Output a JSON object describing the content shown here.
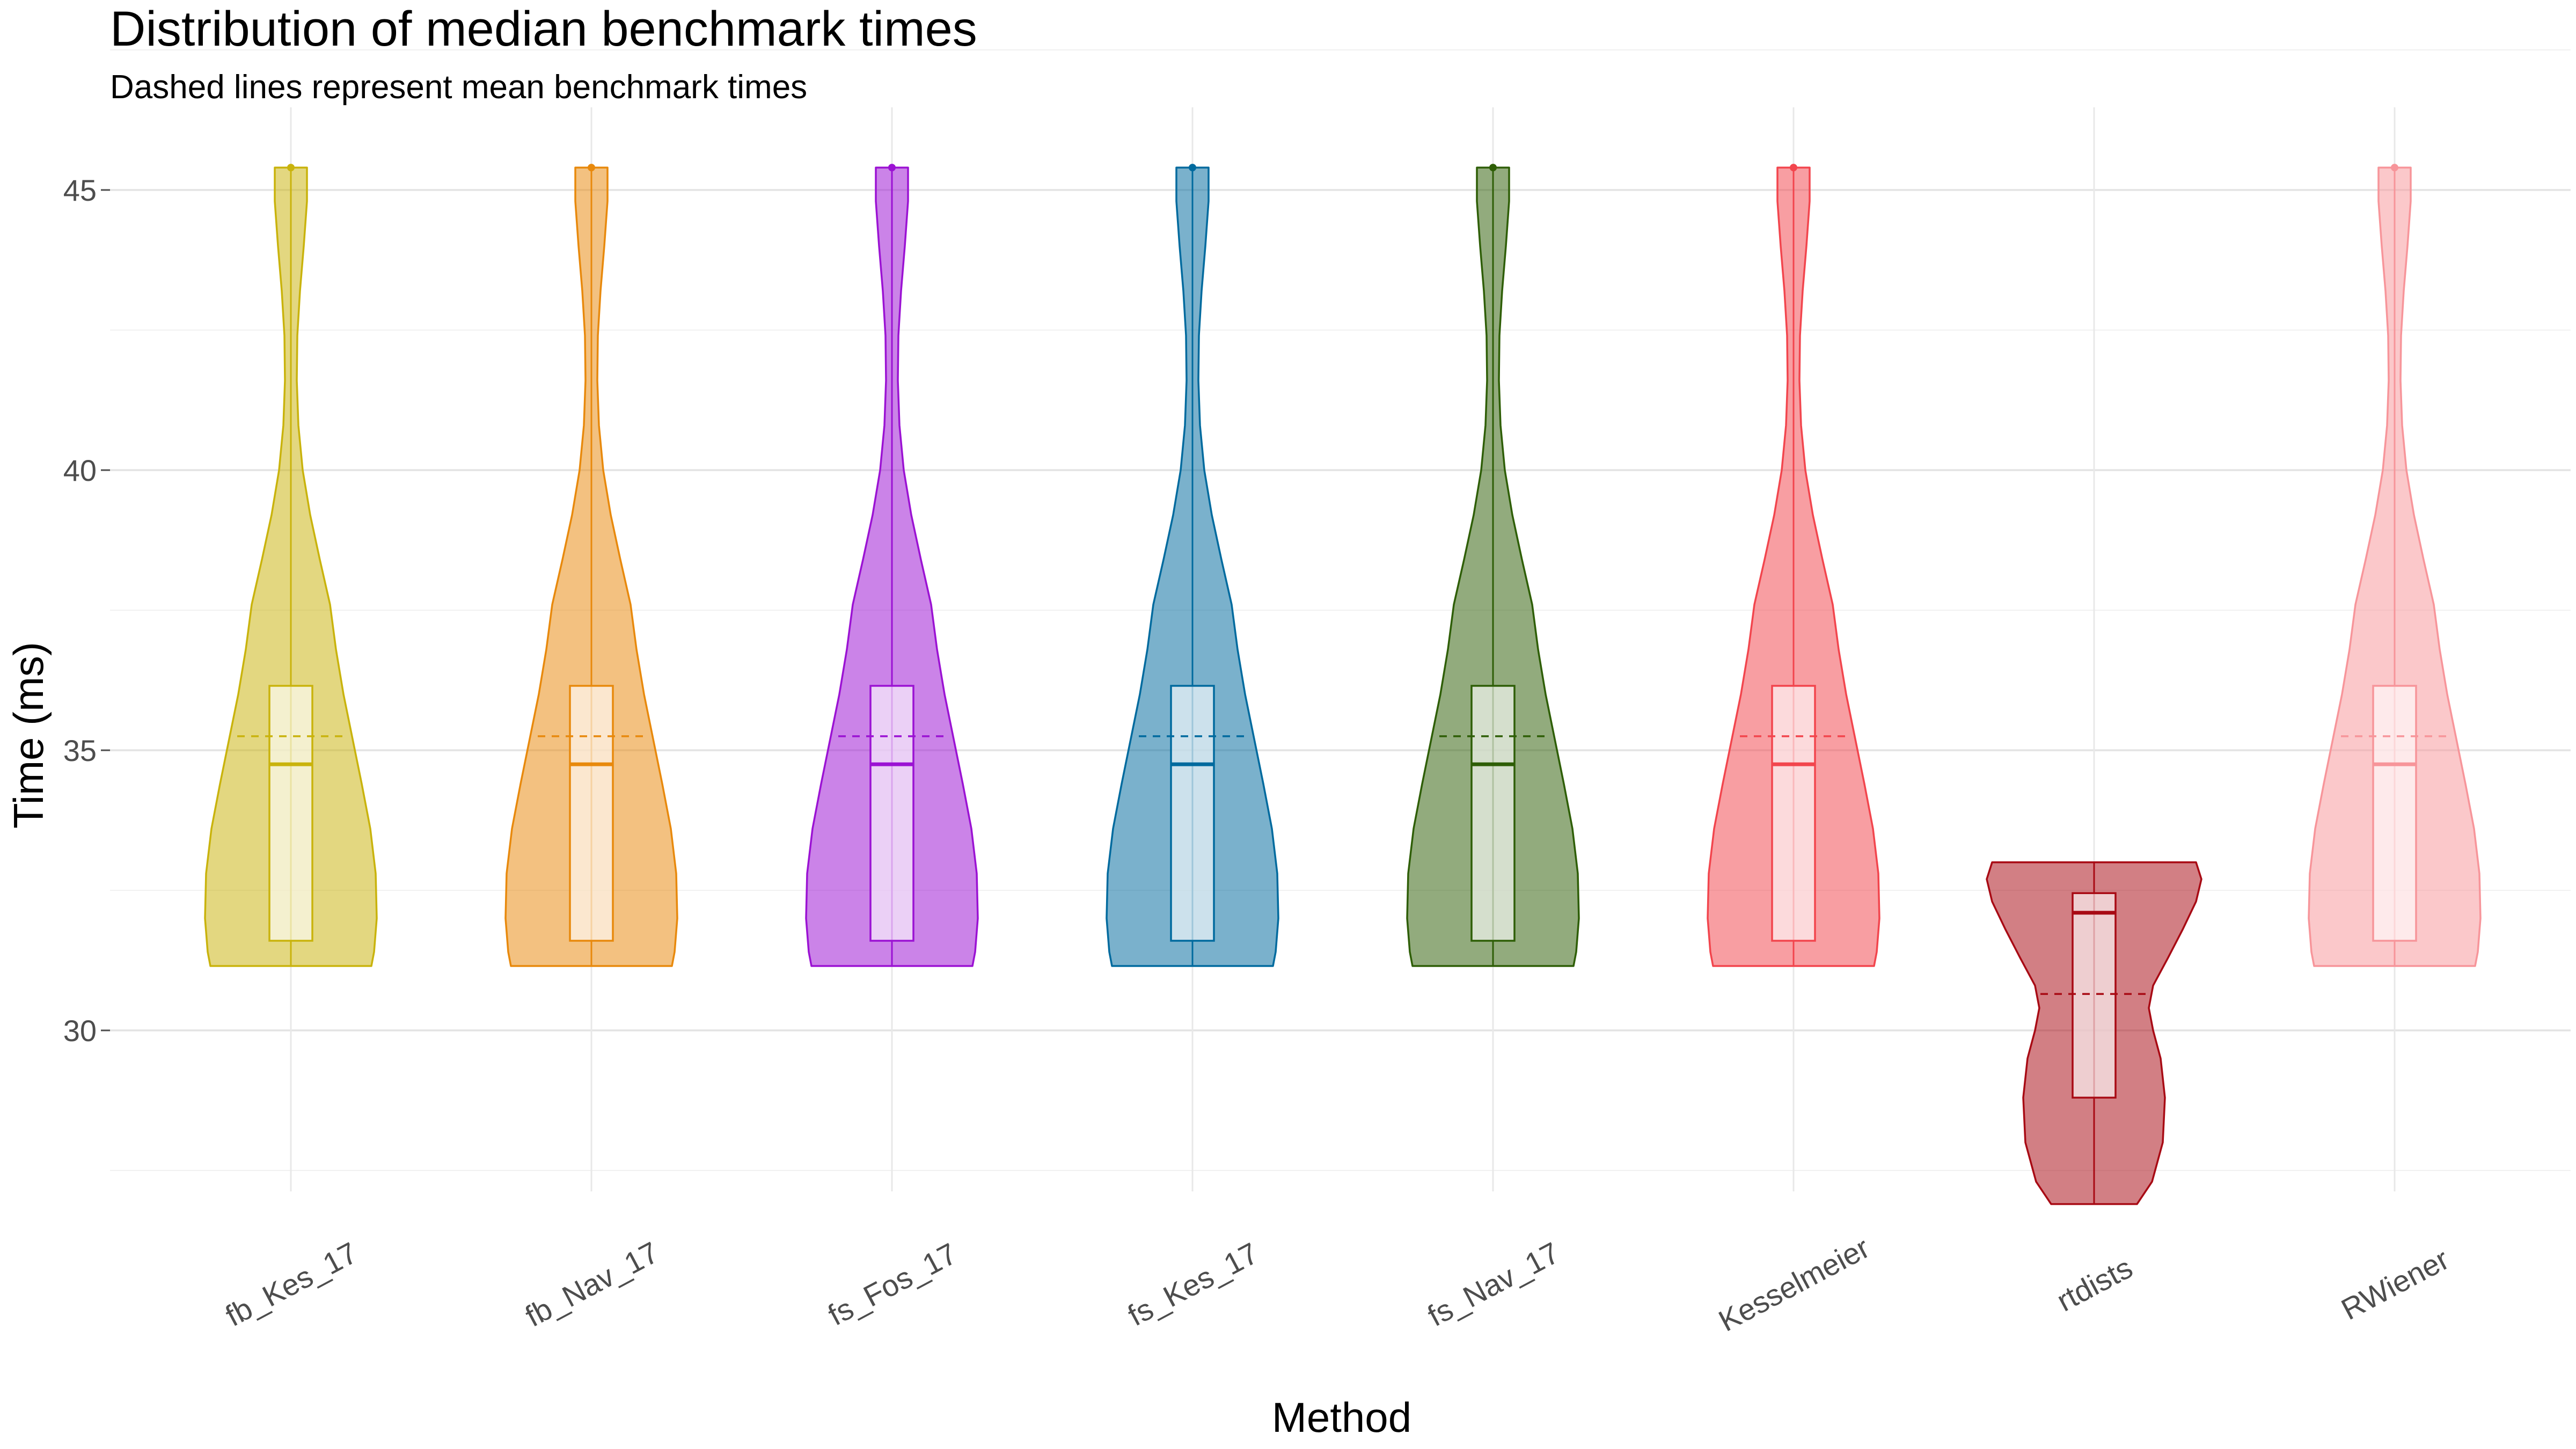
{
  "chart_data": {
    "type": "violin",
    "title": "Distribution of median benchmark times",
    "subtitle": "Dashed lines represent mean benchmark times",
    "xlabel": "Method",
    "ylabel": "Time (ms)",
    "ylim": [
      26.5,
      46.5
    ],
    "yticks": [
      30,
      35,
      40,
      45
    ],
    "grid": true,
    "categories": [
      "fb_Kes_17",
      "fb_Nav_17",
      "fs_Fos_17",
      "fs_Kes_17",
      "fs_Nav_17",
      "Kesselmeier",
      "rtdists",
      "RWiener"
    ],
    "series": [
      {
        "category": "fb_Kes_17",
        "color": "#c9b30c",
        "min": 31.15,
        "q1": 31.6,
        "median": 34.75,
        "q3": 36.15,
        "max": 45.4,
        "mean": 35.25,
        "shape": "standard"
      },
      {
        "category": "fb_Nav_17",
        "color": "#e8890c",
        "min": 31.15,
        "q1": 31.6,
        "median": 34.75,
        "q3": 36.15,
        "max": 45.4,
        "mean": 35.25,
        "shape": "standard"
      },
      {
        "category": "fs_Fos_17",
        "color": "#9b12d3",
        "min": 31.15,
        "q1": 31.6,
        "median": 34.75,
        "q3": 36.15,
        "max": 45.4,
        "mean": 35.25,
        "shape": "standard"
      },
      {
        "category": "fs_Kes_17",
        "color": "#006a9e",
        "min": 31.15,
        "q1": 31.6,
        "median": 34.75,
        "q3": 36.15,
        "max": 45.4,
        "mean": 35.25,
        "shape": "standard"
      },
      {
        "category": "fs_Nav_17",
        "color": "#2e5e06",
        "min": 31.15,
        "q1": 31.6,
        "median": 34.75,
        "q3": 36.15,
        "max": 45.4,
        "mean": 35.25,
        "shape": "standard"
      },
      {
        "category": "Kesselmeier",
        "color": "#f2454d",
        "min": 31.15,
        "q1": 31.6,
        "median": 34.75,
        "q3": 36.15,
        "max": 45.4,
        "mean": 35.25,
        "shape": "standard"
      },
      {
        "category": "rtdists",
        "color": "#a80a14",
        "min": 26.9,
        "q1": 28.8,
        "median": 32.1,
        "q3": 32.45,
        "max": 33.0,
        "mean": 30.65,
        "shape": "rtdists"
      },
      {
        "category": "RWiener",
        "color": "#f7959a",
        "min": 31.15,
        "q1": 31.6,
        "median": 34.75,
        "q3": 36.15,
        "max": 45.4,
        "mean": 35.25,
        "shape": "standard"
      }
    ]
  }
}
